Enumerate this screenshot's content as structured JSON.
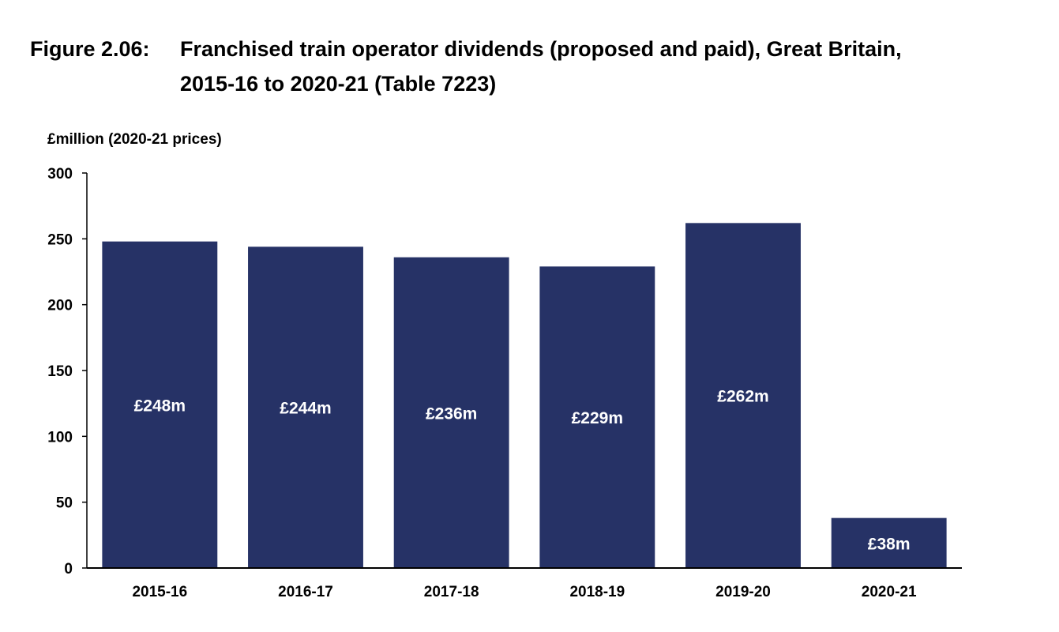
{
  "title": {
    "prefix": "Figure 2.06:",
    "line1": "Franchised train operator dividends (proposed and paid), Great Britain,",
    "line2": "2015-16 to 2020-21 (Table 7223)"
  },
  "colors": {
    "bar": "#263266",
    "axis": "#000000",
    "bar_label": "#ffffff"
  },
  "chart_data": {
    "type": "bar",
    "title": "Franchised train operator dividends (proposed and paid), Great Britain, 2015-16 to 2020-21 (Table 7223)",
    "ylabel": "£million (2020-21 prices)",
    "xlabel": "",
    "ylim": [
      0,
      300
    ],
    "yticks": [
      0,
      50,
      100,
      150,
      200,
      250,
      300
    ],
    "categories": [
      "2015-16",
      "2016-17",
      "2017-18",
      "2018-19",
      "2019-20",
      "2020-21"
    ],
    "values": [
      248,
      244,
      236,
      229,
      262,
      38
    ],
    "data_labels": [
      "£248m",
      "£244m",
      "£236m",
      "£229m",
      "£262m",
      "£38m"
    ],
    "grid": false,
    "legend": "none"
  }
}
